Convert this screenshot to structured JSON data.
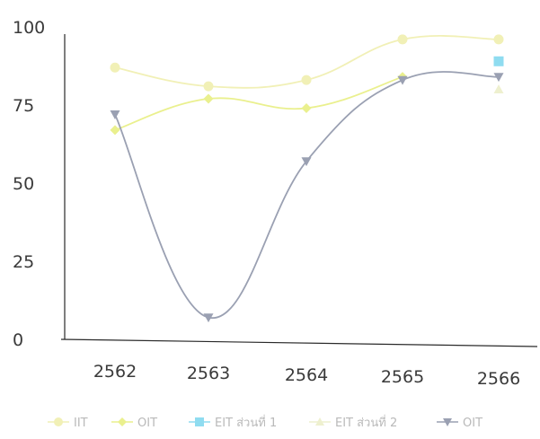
{
  "chart_data": {
    "type": "line",
    "categories": [
      "2562",
      "2563",
      "2564",
      "2565",
      "2566"
    ],
    "ylim": [
      0,
      100
    ],
    "yticks": [
      0,
      25,
      50,
      75,
      100
    ],
    "grid": false,
    "legend_position": "bottom",
    "series": [
      {
        "name": "IIT",
        "values": [
          87,
          81,
          83,
          96,
          96
        ],
        "color": "#f1f0b6",
        "marker": "circle"
      },
      {
        "name": "OIT",
        "values": [
          67,
          77,
          74,
          84,
          null
        ],
        "color": "#eaf08e",
        "marker": "diamond"
      },
      {
        "name": "EIT ส่วนที่ 1",
        "values": [
          null,
          null,
          null,
          null,
          89
        ],
        "color": "#8fdcf0",
        "marker": "square"
      },
      {
        "name": "EIT ส่วนที่ 2",
        "values": [
          null,
          null,
          null,
          null,
          80
        ],
        "color": "#eef0cf",
        "marker": "triangle"
      },
      {
        "name": "OIT",
        "values": [
          72,
          7,
          57,
          83,
          84
        ],
        "color": "#9aa0b2",
        "marker": "triangle-down"
      }
    ]
  }
}
